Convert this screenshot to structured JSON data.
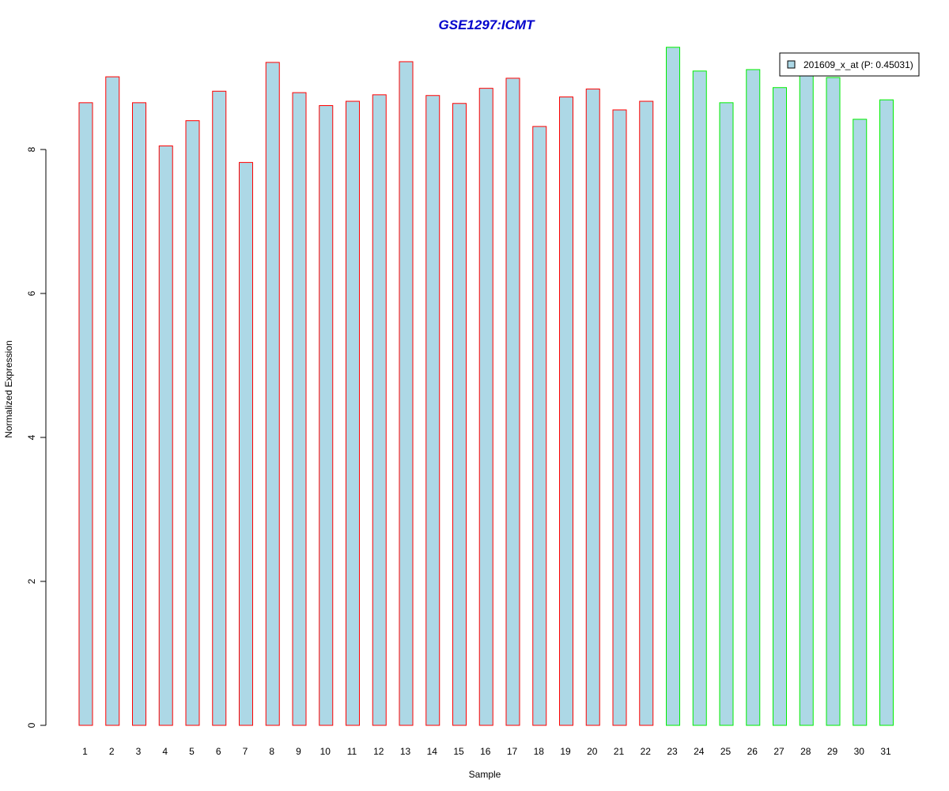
{
  "chart_data": {
    "type": "bar",
    "title": "GSE1297:ICMT",
    "xlabel": "Sample",
    "ylabel": "Normalized Expression",
    "categories": [
      "1",
      "2",
      "3",
      "4",
      "5",
      "6",
      "7",
      "8",
      "9",
      "10",
      "11",
      "12",
      "13",
      "14",
      "15",
      "16",
      "17",
      "18",
      "19",
      "20",
      "21",
      "22",
      "23",
      "24",
      "25",
      "26",
      "27",
      "28",
      "29",
      "30",
      "31"
    ],
    "values": [
      8.65,
      9.01,
      8.65,
      8.05,
      8.4,
      8.81,
      7.82,
      9.21,
      8.79,
      8.61,
      8.67,
      8.76,
      9.22,
      8.75,
      8.64,
      8.85,
      8.99,
      8.32,
      8.73,
      8.84,
      8.55,
      8.67,
      9.42,
      9.09,
      8.65,
      9.11,
      8.86,
      9.06,
      9.0,
      8.42,
      8.69
    ],
    "groups": [
      {
        "from_index": 0,
        "to_index": 21,
        "border_color": "#ff0000"
      },
      {
        "from_index": 22,
        "to_index": 30,
        "border_color": "#00ee00"
      }
    ],
    "fill_color": "#add8e6",
    "ylim": [
      0,
      9.42
    ],
    "yticks": [
      "0",
      "2",
      "4",
      "6",
      "8"
    ],
    "legend": {
      "label": "201609_x_at (P: 0.45031)",
      "placement": "top-right"
    },
    "title_color": "#0000cc",
    "grid": false
  }
}
